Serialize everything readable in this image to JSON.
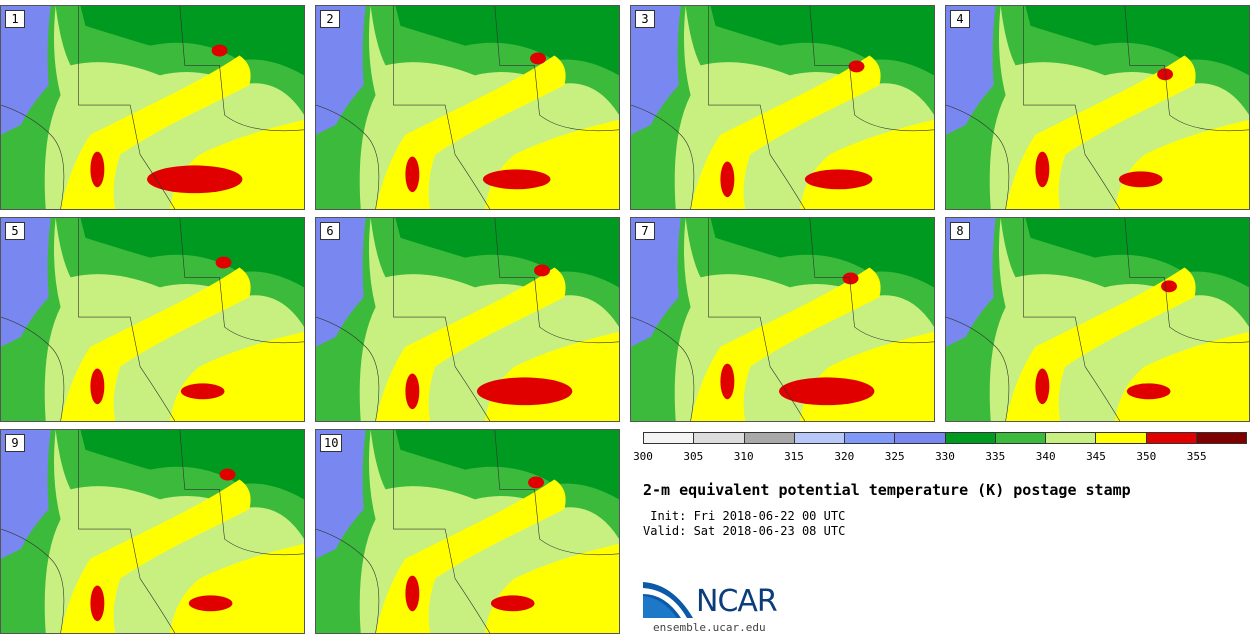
{
  "stamps": [
    {
      "label": "1",
      "red_coverage": "large"
    },
    {
      "label": "2",
      "red_coverage": "medium"
    },
    {
      "label": "3",
      "red_coverage": "medium"
    },
    {
      "label": "4",
      "red_coverage": "small"
    },
    {
      "label": "5",
      "red_coverage": "small"
    },
    {
      "label": "6",
      "red_coverage": "large"
    },
    {
      "label": "7",
      "red_coverage": "large"
    },
    {
      "label": "8",
      "red_coverage": "small"
    },
    {
      "label": "9",
      "red_coverage": "small"
    },
    {
      "label": "10",
      "red_coverage": "small"
    }
  ],
  "colorbar": {
    "ticks": [
      "300",
      "305",
      "310",
      "315",
      "320",
      "325",
      "330",
      "335",
      "340",
      "345",
      "350",
      "355"
    ],
    "colors": [
      "#f4f4f4",
      "#dcdcdc",
      "#a8a8a8",
      "#b8c8f8",
      "#8098f8",
      "#7888f0",
      "#009a20",
      "#3cba3c",
      "#c8f080",
      "#ffff00",
      "#e00000",
      "#800000"
    ]
  },
  "title": "2-m equivalent potential temperature (K) postage stamp",
  "init": " Init: Fri 2018-06-22 00 UTC",
  "valid": "Valid: Sat 2018-06-23 08 UTC",
  "logo": {
    "text": "NCAR",
    "site": "ensemble.ucar.edu"
  }
}
